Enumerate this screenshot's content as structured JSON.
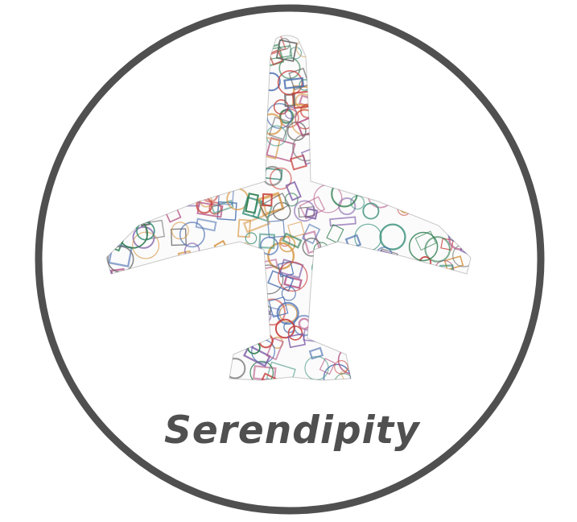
{
  "brand": {
    "name": "Serendipity"
  },
  "colors": {
    "ring": "#505050",
    "text": "#505050",
    "background": "#ffffff",
    "stamp_palette": [
      "#c8413c",
      "#3a8f7a",
      "#4a6fb0",
      "#d89a4a",
      "#7b5aa6",
      "#2e7d4f",
      "#b85c8a",
      "#6a6a6a"
    ]
  },
  "artwork": {
    "icon": "airplane-icon",
    "pattern": "passport-stamps-collage"
  }
}
